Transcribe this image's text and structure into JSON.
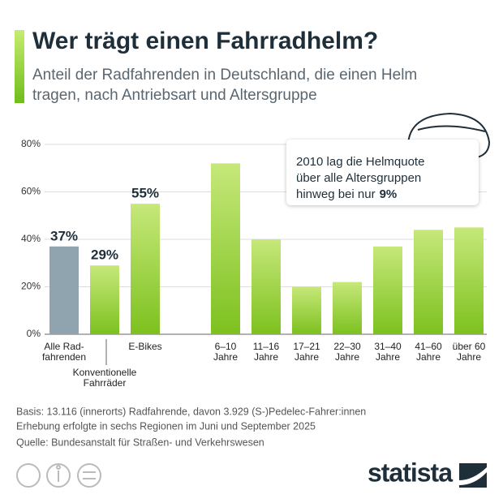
{
  "chart_data": {
    "type": "bar",
    "title": "Wer trägt einen Fahrradhelm?",
    "subtitle": [
      "Anteil der Radfahrenden in Deutschland, die einen Helm",
      "tragen, nach Antriebsart und Altersgruppe"
    ],
    "categories": [
      "Alle Rad-\nfahrenden",
      "Konventionelle\nFahrräder",
      "E-Bikes",
      "6–10\nJahre",
      "11–16\nJahre",
      "17–21\nJahre",
      "22–30\nJahre",
      "31–40\nJahre",
      "41–60\nJahre",
      "über 60\nJahre"
    ],
    "values": [
      37,
      29,
      55,
      72,
      40,
      20,
      22,
      37,
      44,
      45
    ],
    "value_labels": [
      "37%",
      "29%",
      "55%",
      null,
      null,
      null,
      null,
      null,
      null,
      null
    ],
    "colors": [
      "#90a4b0",
      "#8cc63f",
      "#8cc63f",
      "#8cc63f",
      "#8cc63f",
      "#8cc63f",
      "#8cc63f",
      "#8cc63f",
      "#8cc63f",
      "#8cc63f"
    ],
    "ylim": [
      0,
      80
    ],
    "yticks": [
      {
        "value": 0,
        "label": "0%"
      },
      {
        "value": 20,
        "label": "20%"
      },
      {
        "value": 40,
        "label": "40%"
      },
      {
        "value": 60,
        "label": "60%"
      },
      {
        "value": 80,
        "label": "80%"
      }
    ],
    "grid": true,
    "annotation": {
      "lines": [
        "2010 lag die Helmquote",
        "über alle Altersgruppen",
        "hinweg bei nur"
      ],
      "value_label": "9%"
    },
    "notes": [
      "Basis: 13.116 (innerorts) Radfahrende, davon 3.929 (S-)Pedelec-Fahrer:innen",
      "Erhebung erfolgte in sechs Regionen im Juni und September 2025"
    ],
    "source": "Quelle: Bundesanstalt für Straßen- und Verkehrswesen",
    "brand": "statista"
  }
}
